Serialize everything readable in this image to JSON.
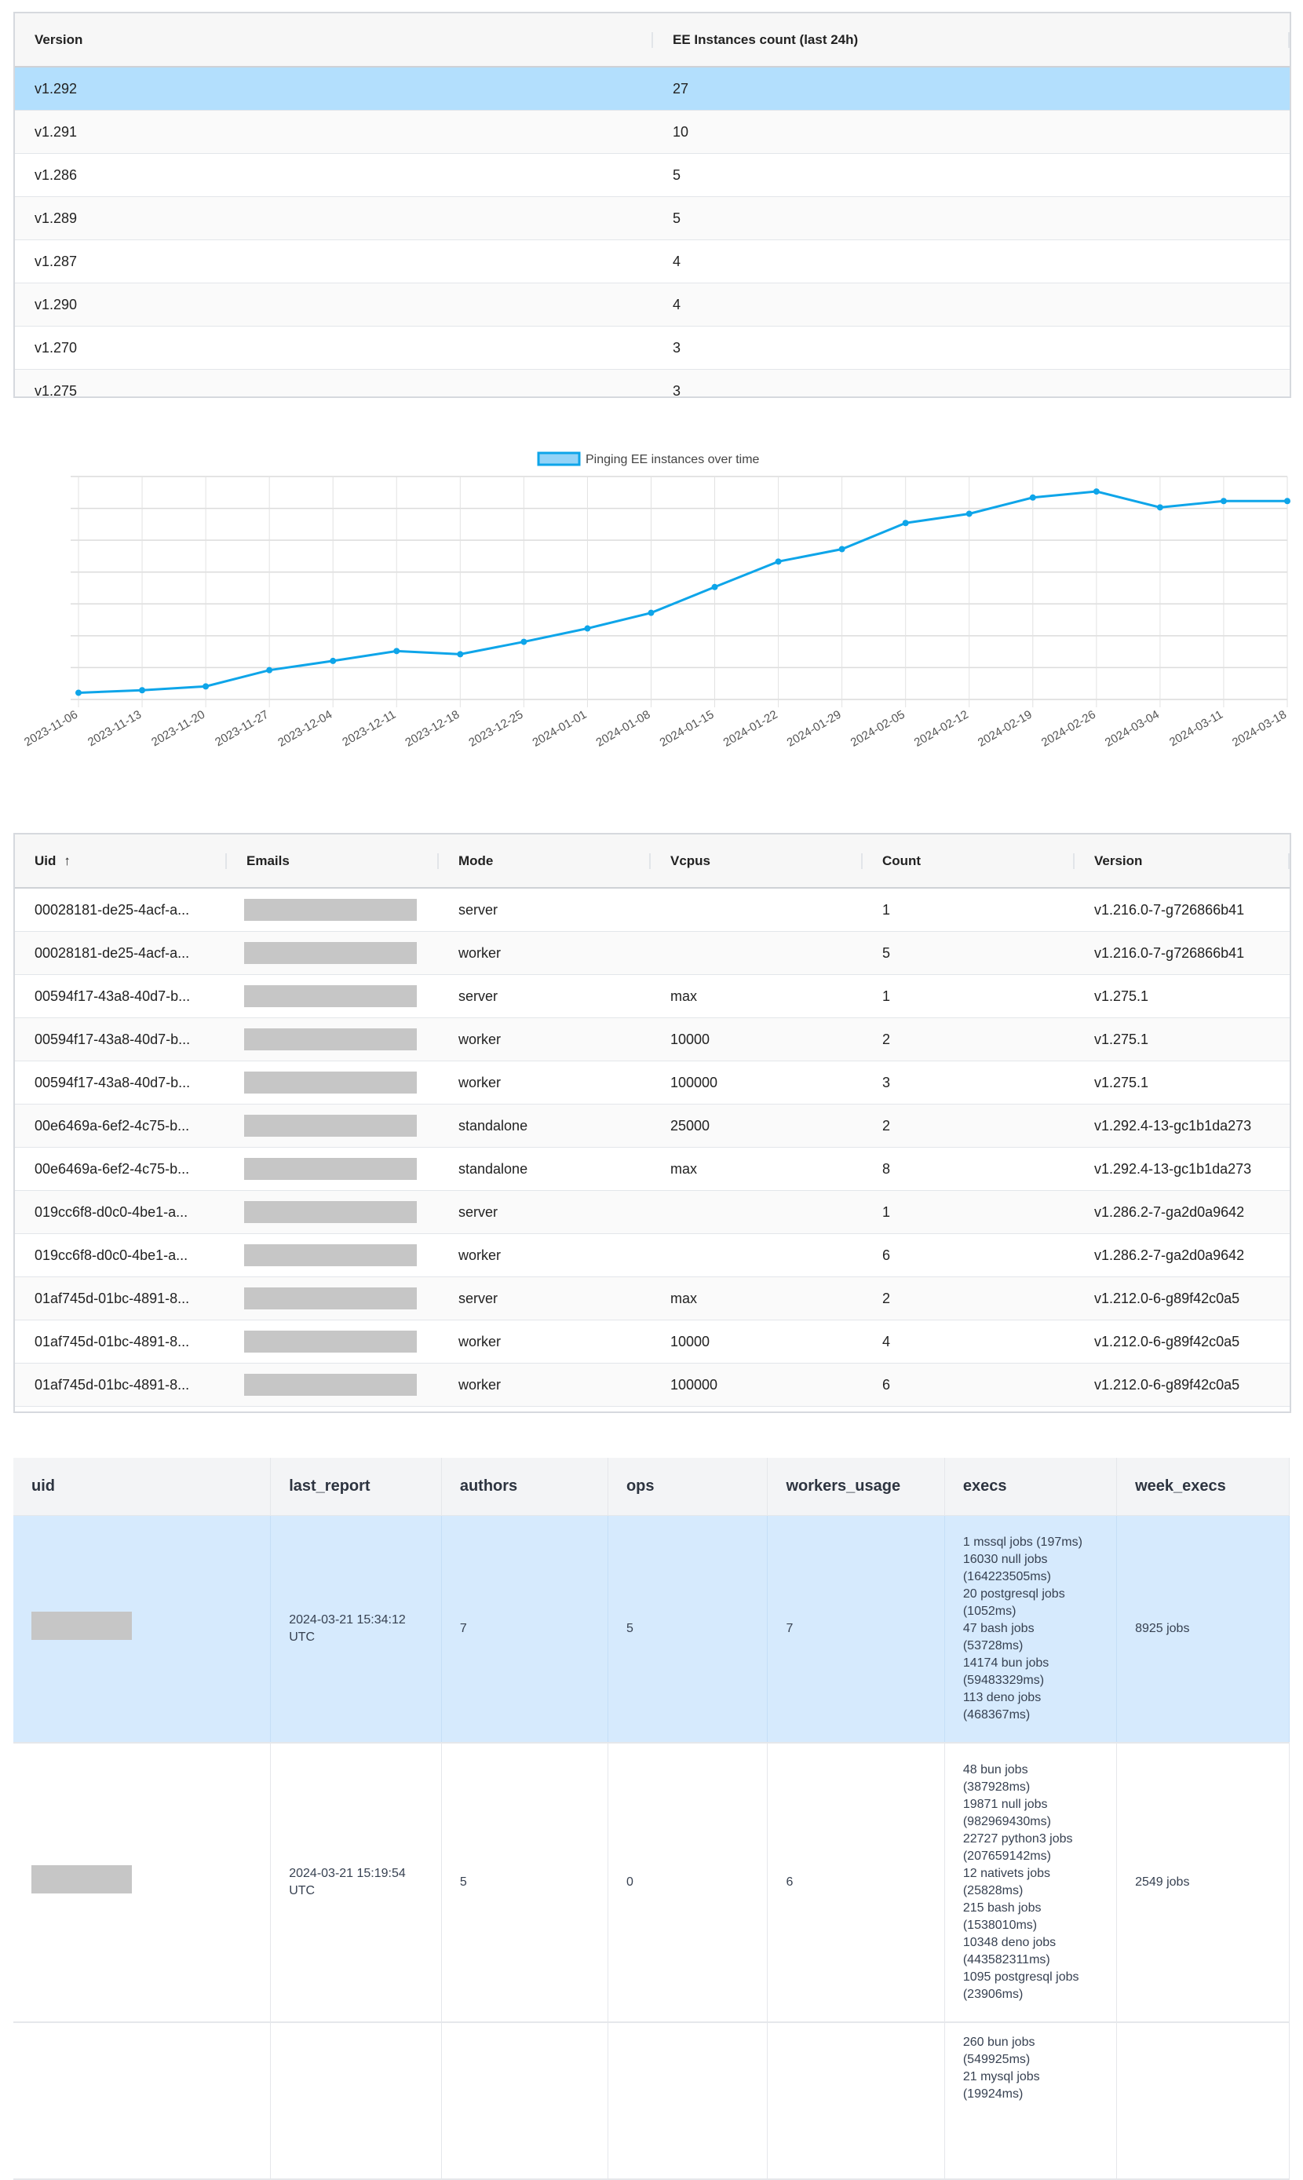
{
  "versions_table": {
    "columns": [
      "Version",
      "EE Instances count (last 24h)"
    ],
    "rows": [
      [
        "v1.292",
        "27"
      ],
      [
        "v1.291",
        "10"
      ],
      [
        "v1.286",
        "5"
      ],
      [
        "v1.289",
        "5"
      ],
      [
        "v1.287",
        "4"
      ],
      [
        "v1.290",
        "4"
      ],
      [
        "v1.270",
        "3"
      ],
      [
        "v1.275",
        "3"
      ]
    ],
    "selected_row": 0
  },
  "chart_data": {
    "type": "line",
    "title": "",
    "legend": {
      "entries": [
        "Pinging EE instances over time"
      ],
      "placement": "top"
    },
    "series": [
      {
        "name": "Pinging EE instances over time",
        "color": "#0ea5e9",
        "values": [
          0.21,
          0.29,
          0.41,
          0.92,
          1.21,
          1.52,
          1.42,
          1.81,
          2.23,
          2.72,
          3.53,
          4.33,
          4.72,
          5.54,
          5.83,
          6.34,
          6.53,
          6.03,
          6.23,
          6.23
        ]
      }
    ],
    "x": [
      "2023-11-06",
      "2023-11-13",
      "2023-11-20",
      "2023-11-27",
      "2023-12-04",
      "2023-12-11",
      "2023-12-18",
      "2023-12-25",
      "2024-01-01",
      "2024-01-08",
      "2024-01-15",
      "2024-01-22",
      "2024-01-29",
      "2024-02-05",
      "2024-02-12",
      "2024-02-19",
      "2024-02-26",
      "2024-03-04",
      "2024-03-11",
      "2024-03-18"
    ],
    "ylim": [
      0,
      7
    ],
    "y_tick_labels_shown": false,
    "grid": true,
    "xlabel": "",
    "ylabel": ""
  },
  "instances_table": {
    "columns": [
      "Uid",
      "Emails",
      "Mode",
      "Vcpus",
      "Count",
      "Version"
    ],
    "sort": {
      "column": "Uid",
      "direction": "asc",
      "icon": "arrow-up-icon"
    },
    "rows": [
      [
        "00028181-de25-4acf-a...",
        "",
        "server",
        "",
        "1",
        "v1.216.0-7-g726866b41"
      ],
      [
        "00028181-de25-4acf-a...",
        "",
        "worker",
        "",
        "5",
        "v1.216.0-7-g726866b41"
      ],
      [
        "00594f17-43a8-40d7-b...",
        "",
        "server",
        "max",
        "1",
        "v1.275.1"
      ],
      [
        "00594f17-43a8-40d7-b...",
        "",
        "worker",
        "10000",
        "2",
        "v1.275.1"
      ],
      [
        "00594f17-43a8-40d7-b...",
        "",
        "worker",
        "100000",
        "3",
        "v1.275.1"
      ],
      [
        "00e6469a-6ef2-4c75-b...",
        "",
        "standalone",
        "25000",
        "2",
        "v1.292.4-13-gc1b1da273"
      ],
      [
        "00e6469a-6ef2-4c75-b...",
        "",
        "standalone",
        "max",
        "8",
        "v1.292.4-13-gc1b1da273"
      ],
      [
        "019cc6f8-d0c0-4be1-a...",
        "",
        "server",
        "",
        "1",
        "v1.286.2-7-ga2d0a9642"
      ],
      [
        "019cc6f8-d0c0-4be1-a...",
        "",
        "worker",
        "",
        "6",
        "v1.286.2-7-ga2d0a9642"
      ],
      [
        "01af745d-01bc-4891-8...",
        "",
        "server",
        "max",
        "2",
        "v1.212.0-6-g89f42c0a5"
      ],
      [
        "01af745d-01bc-4891-8...",
        "",
        "worker",
        "10000",
        "4",
        "v1.212.0-6-g89f42c0a5"
      ],
      [
        "01af745d-01bc-4891-8...",
        "",
        "worker",
        "100000",
        "6",
        "v1.212.0-6-g89f42c0a5"
      ]
    ]
  },
  "reports_table": {
    "columns": [
      "uid",
      "last_report",
      "authors",
      "ops",
      "workers_usage",
      "execs",
      "week_execs"
    ],
    "rows": [
      {
        "uid": "",
        "last_report": "2024-03-21 15:34:12\nUTC",
        "authors": "7",
        "ops": "5",
        "workers_usage": "7",
        "execs": "1 mssql jobs (197ms)\n16030 null jobs\n(164223505ms)\n20 postgresql jobs\n(1052ms)\n47 bash jobs\n(53728ms)\n14174 bun jobs\n(59483329ms)\n113 deno jobs\n(468367ms)",
        "week_execs": "8925 jobs",
        "selected": true
      },
      {
        "uid": "",
        "last_report": "2024-03-21 15:19:54\nUTC",
        "authors": "5",
        "ops": "0",
        "workers_usage": "6",
        "execs": "48 bun jobs\n(387928ms)\n19871 null jobs\n(982969430ms)\n22727 python3 jobs\n(207659142ms)\n12 nativets jobs\n(25828ms)\n215 bash jobs\n(1538010ms)\n10348 deno jobs\n(443582311ms)\n1095 postgresql jobs\n(23906ms)",
        "week_execs": "2549 jobs",
        "selected": false
      },
      {
        "uid": "",
        "last_report": "",
        "authors": "",
        "ops": "",
        "workers_usage": "",
        "execs": "260 bun jobs\n(549925ms)\n21 mysql jobs\n(19924ms)",
        "week_execs": "",
        "selected": false
      }
    ]
  }
}
